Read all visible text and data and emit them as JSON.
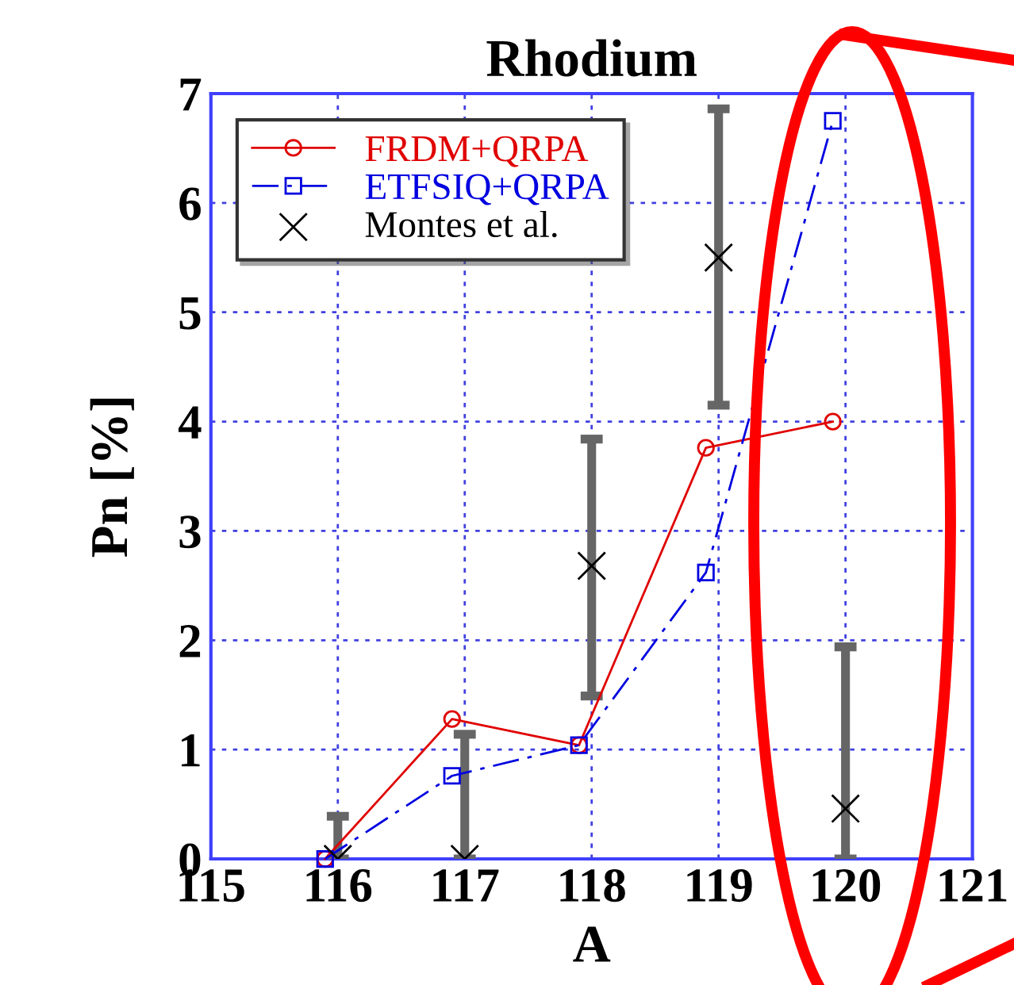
{
  "chart_data": {
    "type": "line",
    "title": "Rhodium",
    "xlabel": "A",
    "ylabel": "Pn [%]",
    "xlim": [
      115,
      121
    ],
    "xticks": [
      115,
      116,
      117,
      118,
      119,
      120,
      121
    ],
    "ylim": [
      0,
      7
    ],
    "yticks": [
      0,
      1,
      2,
      3,
      4,
      5,
      6,
      7
    ],
    "grid": true,
    "legend": "top left",
    "series": [
      {
        "name": "FRDM+QRPA",
        "color": "#e00000",
        "marker": "circle",
        "line_style": "solid",
        "x": [
          115.9,
          116.9,
          117.9,
          118.9,
          119.9
        ],
        "values": [
          0,
          1.28,
          1.04,
          3.76,
          4.0
        ]
      },
      {
        "name": "ETFSIQ+QRPA",
        "color": "#0000e0",
        "marker": "square",
        "line_style": "dashdot",
        "x": [
          115.9,
          116.9,
          117.9,
          118.9,
          119.9
        ],
        "values": [
          0,
          0.76,
          1.04,
          2.62,
          6.75
        ]
      },
      {
        "name": "Montes et al.",
        "color": "#000000",
        "type": "scatter",
        "marker": "cross",
        "x": [
          116,
          117,
          118,
          119,
          120
        ],
        "values": [
          0,
          0,
          2.68,
          5.5,
          0.46
        ],
        "errors": [
          [
            0,
            0.39
          ],
          [
            0,
            1.14
          ],
          [
            1.49,
            3.84
          ],
          [
            4.15,
            6.86
          ],
          [
            0,
            1.94
          ]
        ]
      }
    ]
  }
}
